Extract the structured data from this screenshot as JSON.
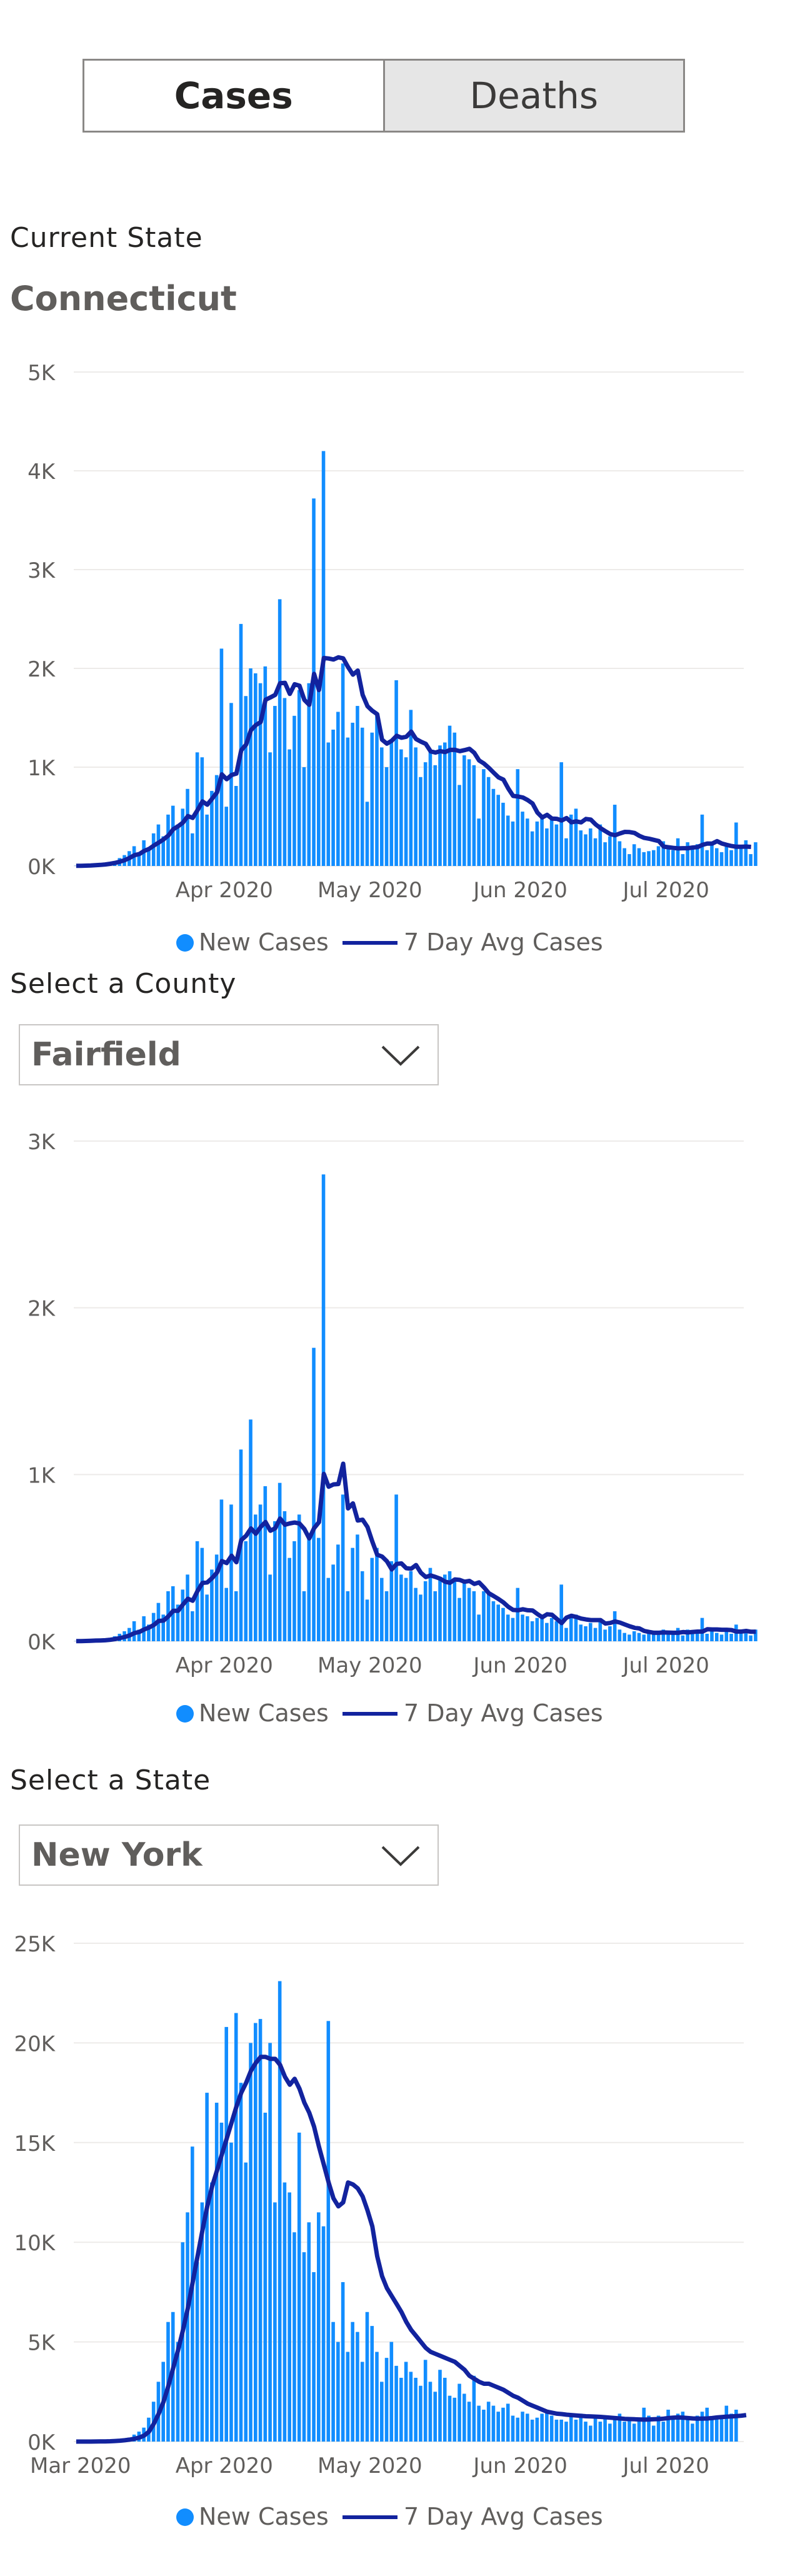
{
  "toggle": {
    "cases_label": "Cases",
    "deaths_label": "Deaths",
    "active": "Cases"
  },
  "section_current_state": {
    "label": "Current State",
    "value": "Connecticut"
  },
  "section_county": {
    "label": "Select a County",
    "selected": "Fairfield"
  },
  "section_state": {
    "label": "Select a State",
    "selected": "New York"
  },
  "colors": {
    "bars": "#118DFF",
    "avg_line": "#12239E",
    "grid": "#EDEBE9",
    "axis_text": "#605E5C"
  },
  "chart_data": [
    {
      "type": "bar",
      "title": "",
      "legend": [
        "New Cases",
        "7 Day Avg Cases"
      ],
      "legend_position": "bottom",
      "x_start": "2020-03-01",
      "x_end": "2020-07-16",
      "x_ticks": [
        {
          "label": "Apr 2020",
          "day": 31
        },
        {
          "label": "May 2020",
          "day": 61
        },
        {
          "label": "Jun 2020",
          "day": 92
        },
        {
          "label": "Jul 2020",
          "day": 122
        }
      ],
      "y_ticks": [
        "0K",
        "1K",
        "2K",
        "3K",
        "4K",
        "5K"
      ],
      "ylim": [
        0,
        5000
      ],
      "series": [
        {
          "name": "New Cases",
          "kind": "bars",
          "values": [
            2,
            3,
            5,
            8,
            12,
            18,
            25,
            35,
            50,
            80,
            110,
            150,
            200,
            120,
            260,
            180,
            330,
            420,
            300,
            520,
            610,
            420,
            580,
            780,
            330,
            1150,
            1100,
            520,
            760,
            920,
            2200,
            600,
            1650,
            810,
            2450,
            1720,
            2000,
            1950,
            1850,
            2020,
            1150,
            1620,
            2700,
            1700,
            1180,
            1520,
            1780,
            1000,
            1850,
            3720,
            1820,
            4200,
            1250,
            1380,
            1560,
            2050,
            1300,
            1450,
            1620,
            1400,
            650,
            1350,
            1540,
            1200,
            1000,
            1250,
            1880,
            1180,
            1100,
            1580,
            1200,
            900,
            1050,
            1150,
            1020,
            1220,
            1250,
            1420,
            1350,
            820,
            1120,
            1080,
            1020,
            480,
            980,
            900,
            780,
            720,
            640,
            510,
            450,
            980,
            550,
            480,
            350,
            450,
            500,
            380,
            480,
            420,
            1050,
            280,
            520,
            580,
            360,
            320,
            380,
            280,
            420,
            240,
            300,
            620,
            250,
            180,
            120,
            220,
            180,
            140,
            150,
            160,
            200,
            250,
            180,
            160,
            280,
            120,
            240,
            180,
            220,
            520,
            160,
            240,
            180,
            140,
            200,
            160,
            440,
            180,
            260,
            120,
            240
          ]
        },
        {
          "name": "7 Day Avg Cases",
          "kind": "line",
          "values": [
            2,
            2,
            3,
            5,
            8,
            11,
            15,
            22,
            31,
            43,
            59,
            81,
            109,
            121,
            152,
            172,
            207,
            237,
            269,
            309,
            372,
            402,
            440,
            505,
            487,
            566,
            653,
            620,
            681,
            745,
            927,
            878,
            921,
            935,
            1172,
            1229,
            1375,
            1426,
            1457,
            1682,
            1706,
            1732,
            1850,
            1854,
            1742,
            1839,
            1825,
            1681,
            1631,
            1944,
            1781,
            2105,
            2100,
            2090,
            2112,
            2102,
            2013,
            1937,
            1978,
            1733,
            1617,
            1571,
            1537,
            1278,
            1238,
            1268,
            1318,
            1298,
            1308,
            1360,
            1285,
            1258,
            1236,
            1160,
            1148,
            1162,
            1153,
            1175,
            1176,
            1162,
            1173,
            1186,
            1145,
            1068,
            1037,
            993,
            944,
            897,
            874,
            784,
            709,
            703,
            693,
            667,
            632,
            540,
            491,
            518,
            479,
            477,
            460,
            485,
            442,
            451,
            441,
            476,
            469,
            420,
            383,
            352,
            323,
            311,
            329,
            345,
            343,
            334,
            305,
            284,
            276,
            264,
            252,
            196,
            189,
            183,
            178,
            180,
            180,
            187,
            191,
            214,
            227,
            226,
            251,
            227,
            213,
            202,
            194,
            194,
            196,
            193
          ]
        }
      ]
    },
    {
      "type": "bar",
      "title": "",
      "legend": [
        "New Cases",
        "7 Day Avg Cases"
      ],
      "legend_position": "bottom",
      "x_start": "2020-03-01",
      "x_end": "2020-07-16",
      "x_ticks": [
        {
          "label": "Apr 2020",
          "day": 31
        },
        {
          "label": "May 2020",
          "day": 61
        },
        {
          "label": "Jun 2020",
          "day": 92
        },
        {
          "label": "Jul 2020",
          "day": 122
        }
      ],
      "y_ticks": [
        "0K",
        "1K",
        "2K",
        "3K"
      ],
      "ylim": [
        0,
        3000
      ],
      "series": [
        {
          "name": "New Cases",
          "kind": "bars",
          "values": [
            1,
            2,
            3,
            5,
            7,
            10,
            15,
            20,
            30,
            45,
            60,
            80,
            120,
            70,
            150,
            100,
            170,
            230,
            160,
            300,
            330,
            220,
            310,
            400,
            180,
            600,
            560,
            280,
            430,
            520,
            850,
            320,
            820,
            300,
            1150,
            600,
            1330,
            760,
            820,
            930,
            400,
            720,
            950,
            780,
            500,
            600,
            760,
            300,
            640,
            1760,
            620,
            2800,
            380,
            460,
            580,
            880,
            300,
            560,
            640,
            420,
            250,
            500,
            560,
            380,
            300,
            480,
            880,
            400,
            380,
            420,
            320,
            280,
            360,
            440,
            300,
            380,
            400,
            420,
            380,
            260,
            360,
            320,
            300,
            160,
            300,
            280,
            240,
            220,
            200,
            160,
            140,
            320,
            160,
            150,
            120,
            140,
            160,
            110,
            140,
            120,
            340,
            80,
            140,
            160,
            100,
            90,
            110,
            80,
            120,
            70,
            90,
            180,
            70,
            50,
            40,
            60,
            50,
            40,
            45,
            50,
            60,
            70,
            50,
            45,
            80,
            35,
            70,
            50,
            60,
            140,
            45,
            70,
            50,
            40,
            60,
            45,
            100,
            50,
            70,
            35,
            70
          ]
        },
        {
          "name": "7 Day Avg Cases",
          "kind": "line",
          "values": [
            1,
            1,
            2,
            3,
            4,
            5,
            6,
            9,
            13,
            19,
            26,
            35,
            49,
            56,
            71,
            82,
            98,
            122,
            124,
            150,
            183,
            183,
            221,
            255,
            243,
            302,
            350,
            353,
            379,
            412,
            481,
            469,
            513,
            474,
            607,
            633,
            677,
            645,
            686,
            715,
            663,
            678,
            736,
            699,
            707,
            712,
            706,
            673,
            617,
            678,
            714,
            1004,
            927,
            941,
            943,
            1065,
            797,
            827,
            724,
            729,
            685,
            598,
            519,
            508,
            480,
            431,
            464,
            467,
            438,
            435,
            457,
            411,
            385,
            395,
            386,
            375,
            357,
            351,
            371,
            368,
            357,
            362,
            344,
            353,
            323,
            288,
            271,
            253,
            233,
            207,
            188,
            186,
            192,
            186,
            185,
            163,
            144,
            162,
            159,
            134,
            109,
            142,
            153,
            146,
            136,
            131,
            127,
            127,
            127,
            106,
            110,
            119,
            112,
            101,
            90,
            81,
            77,
            62,
            56,
            51,
            51,
            53,
            52,
            51,
            51,
            55,
            53,
            56,
            58,
            58,
            72,
            71,
            71,
            69,
            69,
            67,
            58,
            58,
            62,
            57,
            57
          ]
        }
      ]
    },
    {
      "type": "bar",
      "title": "",
      "legend": [
        "New Cases",
        "7 Day Avg Cases"
      ],
      "legend_position": "bottom",
      "x_start": "2020-03-01",
      "x_end": "2020-07-16",
      "x_ticks": [
        {
          "label": "Mar 2020",
          "day": 0
        },
        {
          "label": "Apr 2020",
          "day": 31
        },
        {
          "label": "May 2020",
          "day": 61
        },
        {
          "label": "Jun 2020",
          "day": 92
        },
        {
          "label": "Jul 2020",
          "day": 122
        }
      ],
      "y_ticks": [
        "0K",
        "5K",
        "10K",
        "15K",
        "20K",
        "25K"
      ],
      "ylim": [
        0,
        25000
      ],
      "series": [
        {
          "name": "New Cases",
          "kind": "bars",
          "values": [
            0,
            0,
            2,
            5,
            10,
            20,
            30,
            50,
            70,
            100,
            150,
            200,
            350,
            500,
            700,
            1200,
            2000,
            3000,
            4000,
            6000,
            6500,
            5000,
            10000,
            11500,
            14800,
            9000,
            12000,
            17500,
            13000,
            17000,
            16000,
            20800,
            15000,
            21500,
            18000,
            14000,
            20000,
            21000,
            21200,
            16500,
            20000,
            12000,
            23100,
            13000,
            12500,
            10500,
            15500,
            9500,
            11000,
            8500,
            11500,
            10800,
            21100,
            6000,
            5000,
            8000,
            4500,
            6000,
            5500,
            4000,
            6500,
            5800,
            4500,
            3000,
            4200,
            5000,
            3800,
            3200,
            4000,
            3500,
            3200,
            2800,
            4100,
            3000,
            2500,
            3600,
            3200,
            2300,
            2200,
            2900,
            2400,
            2000,
            3300,
            1800,
            1600,
            2000,
            1800,
            1500,
            1700,
            1900,
            1300,
            1200,
            1500,
            1400,
            1100,
            1200,
            1400,
            1600,
            1300,
            1100,
            1100,
            1000,
            1300,
            1100,
            1400,
            1000,
            800,
            1200,
            1000,
            1300,
            900,
            1100,
            1400,
            1000,
            1200,
            900,
            1100,
            1700,
            1300,
            800,
            1300,
            1000,
            1600,
            1200,
            1400,
            1500,
            1100,
            900,
            1300,
            1500,
            1700,
            1100,
            1200,
            1300,
            1800,
            1400,
            1600
          ]
        },
        {
          "name": "7 Day Avg Cases",
          "kind": "line",
          "values": [
            0,
            0,
            0,
            1,
            2,
            5,
            10,
            17,
            27,
            44,
            67,
            97,
            140,
            200,
            300,
            500,
            900,
            1400,
            2000,
            2800,
            3700,
            4600,
            5600,
            6700,
            8000,
            9300,
            10600,
            11800,
            12800,
            13600,
            14400,
            15200,
            16000,
            16800,
            17500,
            18000,
            18600,
            19000,
            19300,
            19300,
            19200,
            19200,
            18900,
            18300,
            17900,
            18200,
            17700,
            17000,
            16500,
            15800,
            14800,
            13900,
            13000,
            12200,
            11800,
            12000,
            13000,
            12900,
            12700,
            12300,
            11600,
            10800,
            9300,
            8300,
            7700,
            7300,
            6900,
            6500,
            6000,
            5600,
            5300,
            5000,
            4700,
            4500,
            4400,
            4300,
            4200,
            4100,
            4000,
            3800,
            3600,
            3300,
            3150,
            3000,
            2900,
            2900,
            2800,
            2700,
            2600,
            2450,
            2300,
            2200,
            2050,
            1900,
            1800,
            1700,
            1600,
            1500,
            1450,
            1400,
            1380,
            1350,
            1330,
            1310,
            1290,
            1270,
            1260,
            1250,
            1240,
            1220,
            1200,
            1180,
            1160,
            1140,
            1130,
            1120,
            1110,
            1100,
            1110,
            1120,
            1130,
            1150,
            1180,
            1200,
            1210,
            1200,
            1180,
            1160,
            1150,
            1150,
            1160,
            1180,
            1210,
            1230,
            1250,
            1260,
            1280,
            1300,
            1330
          ]
        }
      ]
    }
  ]
}
